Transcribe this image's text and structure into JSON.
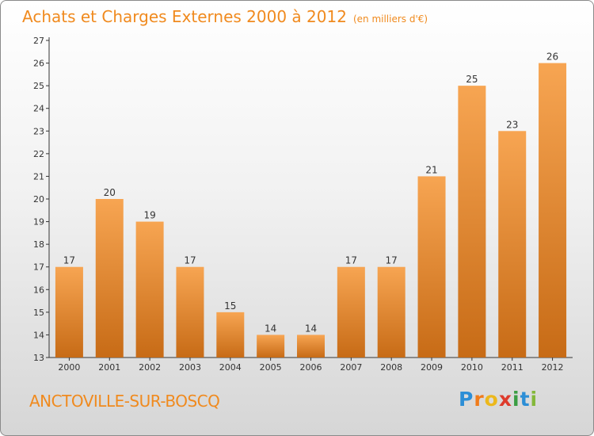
{
  "header": {
    "title": "Achats et Charges Externes 2000 à 2012",
    "unit": "(en milliers d'€)"
  },
  "location": "ANCTOVILLE-SUR-BOSCQ",
  "brand": {
    "letters": [
      "P",
      "r",
      "o",
      "x",
      "i",
      "t",
      "i"
    ],
    "colors": [
      "#2c8ed6",
      "#f07b1a",
      "#ecb81c",
      "#de3b2c",
      "#3a9d43",
      "#2c8ed6",
      "#84b83a"
    ]
  },
  "colors": {
    "accent": "#f08a1e",
    "bar_top": "#f7a552",
    "bar_bottom": "#c76b16",
    "axis": "#333333"
  },
  "chart_data": {
    "type": "bar",
    "title": "Achats et Charges Externes 2000 à 2012",
    "subtitle": "(en milliers d'€)",
    "categories": [
      "2000",
      "2001",
      "2002",
      "2003",
      "2004",
      "2005",
      "2006",
      "2007",
      "2008",
      "2009",
      "2010",
      "2011",
      "2012"
    ],
    "values": [
      17,
      20,
      19,
      17,
      15,
      14,
      14,
      17,
      17,
      21,
      25,
      23,
      26
    ],
    "ylim": [
      13,
      27
    ],
    "yticks": [
      13,
      14,
      15,
      16,
      17,
      18,
      19,
      20,
      21,
      22,
      23,
      24,
      25,
      26,
      27
    ],
    "grid": false,
    "legend": "none"
  }
}
